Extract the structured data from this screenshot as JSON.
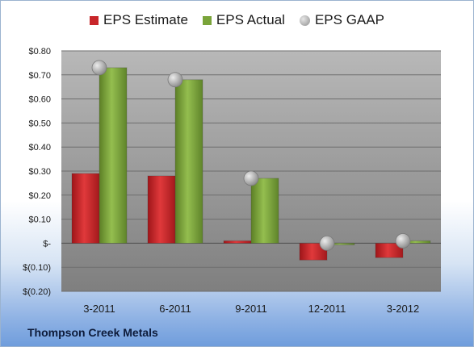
{
  "legend": {
    "estimate": "EPS Estimate",
    "actual": "EPS Actual",
    "gaap": "EPS GAAP"
  },
  "company": "Thompson Creek Metals",
  "colors": {
    "estimate": "#c8262a",
    "actual": "#7aa43a",
    "gaap": "#a6a6a6",
    "plot_bg_top": "#b3b3b3",
    "plot_bg_bottom": "#7f7f7f"
  },
  "chart_data": {
    "type": "bar",
    "categories": [
      "3-2011",
      "6-2011",
      "9-2011",
      "12-2011",
      "3-2012"
    ],
    "series": [
      {
        "name": "EPS Estimate",
        "kind": "bar",
        "values": [
          0.29,
          0.28,
          0.01,
          -0.07,
          -0.06
        ]
      },
      {
        "name": "EPS Actual",
        "kind": "bar",
        "values": [
          0.73,
          0.68,
          0.27,
          0.0,
          0.01
        ]
      },
      {
        "name": "EPS GAAP",
        "kind": "marker",
        "values": [
          0.73,
          0.68,
          0.27,
          0.0,
          0.01
        ]
      }
    ],
    "ylim": [
      -0.2,
      0.8
    ],
    "yticks": [
      "$(0.20)",
      "$(0.10)",
      "$-",
      "$0.10",
      "$0.20",
      "$0.30",
      "$0.40",
      "$0.50",
      "$0.60",
      "$0.70",
      "$0.80"
    ],
    "grid": true,
    "legend_position": "top"
  }
}
